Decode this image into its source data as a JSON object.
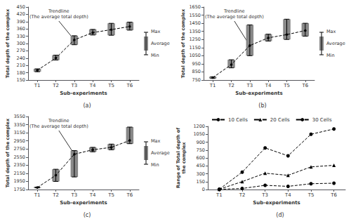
{
  "chart_data": [
    {
      "type": "bar",
      "title": "(a)",
      "xlabel": "Sub-experiments",
      "ylabel": "Total depth of the complex",
      "categories": [
        "T1",
        "T2",
        "T3",
        "T4",
        "T5",
        "T6"
      ],
      "series": [
        {
          "name": "Max",
          "values": [
            196,
            252,
            332,
            358,
            383,
            388
          ]
        },
        {
          "name": "Average",
          "type": "line",
          "color": "#000000",
          "line_style": "dashed",
          "marker": "circle",
          "values": [
            190,
            240,
            315,
            345,
            357,
            370
          ]
        },
        {
          "name": "Min",
          "values": [
            184,
            232,
            295,
            335,
            334,
            355
          ]
        }
      ],
      "color": "#888888",
      "ylim": [
        150,
        450
      ],
      "yticks": [
        150,
        180,
        210,
        240,
        270,
        300,
        330,
        360,
        390,
        420,
        450
      ],
      "grid": false,
      "annotations": [
        {
          "text": "Trendline\n(The average total depth)",
          "x": "T3",
          "y": 315
        }
      ]
    },
    {
      "type": "bar",
      "title": "(b)",
      "xlabel": "Sub-experiments",
      "ylabel": "Total depth of the complex",
      "categories": [
        "T1",
        "T2",
        "T3",
        "T4",
        "T5",
        "T6"
      ],
      "series": [
        {
          "name": "Max",
          "values": [
            790,
            1000,
            1430,
            1315,
            1500,
            1450
          ]
        },
        {
          "name": "Average",
          "type": "line",
          "color": "#000000",
          "line_style": "dashed",
          "marker": "circle",
          "values": [
            780,
            940,
            1175,
            1270,
            1310,
            1360
          ]
        },
        {
          "name": "Min",
          "values": [
            770,
            900,
            1050,
            1230,
            1250,
            1290
          ]
        }
      ],
      "color": "#888888",
      "ylim": [
        750,
        1650
      ],
      "yticks": [
        750,
        850,
        950,
        1050,
        1150,
        1250,
        1350,
        1450,
        1550,
        1650
      ],
      "grid": false,
      "annotations": [
        {
          "text": "Trendline\n(The average total depth)",
          "x": "T3",
          "y": 1175
        }
      ]
    },
    {
      "type": "bar",
      "title": "(c)",
      "xlabel": "Sub-experiments",
      "ylabel": "Total depth of the complex",
      "categories": [
        "T1",
        "T2",
        "T3",
        "T4",
        "T5",
        "T6"
      ],
      "series": [
        {
          "name": "Max",
          "values": [
            1810,
            2250,
            2710,
            2790,
            2870,
            3290
          ]
        },
        {
          "name": "Average",
          "type": "line",
          "color": "#000000",
          "line_style": "dashed",
          "marker": "circle",
          "values": [
            1800,
            2100,
            2620,
            2730,
            2790,
            2960
          ]
        },
        {
          "name": "Min",
          "values": [
            1790,
            1950,
            2060,
            2680,
            2730,
            2880
          ]
        }
      ],
      "color": "#888888",
      "ylim": [
        1750,
        3550
      ],
      "yticks": [
        1750,
        1950,
        2150,
        2350,
        2550,
        2750,
        2950,
        3150,
        3350,
        3550
      ],
      "grid": false,
      "annotations": [
        {
          "text": "Trendline\n(The average total depth)",
          "x": "T3",
          "y": 2620
        }
      ]
    },
    {
      "type": "line",
      "title": "(d)",
      "xlabel": "Sub-experiments",
      "ylabel": "Range of Total depth of\nthe complex",
      "categories": [
        "T1",
        "T2",
        "T3",
        "T4",
        "T5",
        "T6"
      ],
      "series": [
        {
          "name": "10 Cells",
          "color": "#000000",
          "line_style": "dashed",
          "marker": "circle",
          "values": [
            5,
            20,
            80,
            60,
            110,
            120
          ]
        },
        {
          "name": "20 Cells",
          "color": "#000000",
          "line_style": "dashed",
          "marker": "triangle",
          "values": [
            5,
            150,
            310,
            270,
            430,
            460
          ]
        },
        {
          "name": "30 Cells",
          "color": "#000000",
          "line_style": "dashed",
          "marker": "circle",
          "values": [
            5,
            330,
            790,
            640,
            1050,
            1150
          ]
        }
      ],
      "ylim": [
        0,
        1200
      ],
      "yticks": [
        0,
        150,
        300,
        450,
        600,
        750,
        900,
        1050,
        1200
      ],
      "grid": false,
      "legend": "upper left"
    }
  ]
}
